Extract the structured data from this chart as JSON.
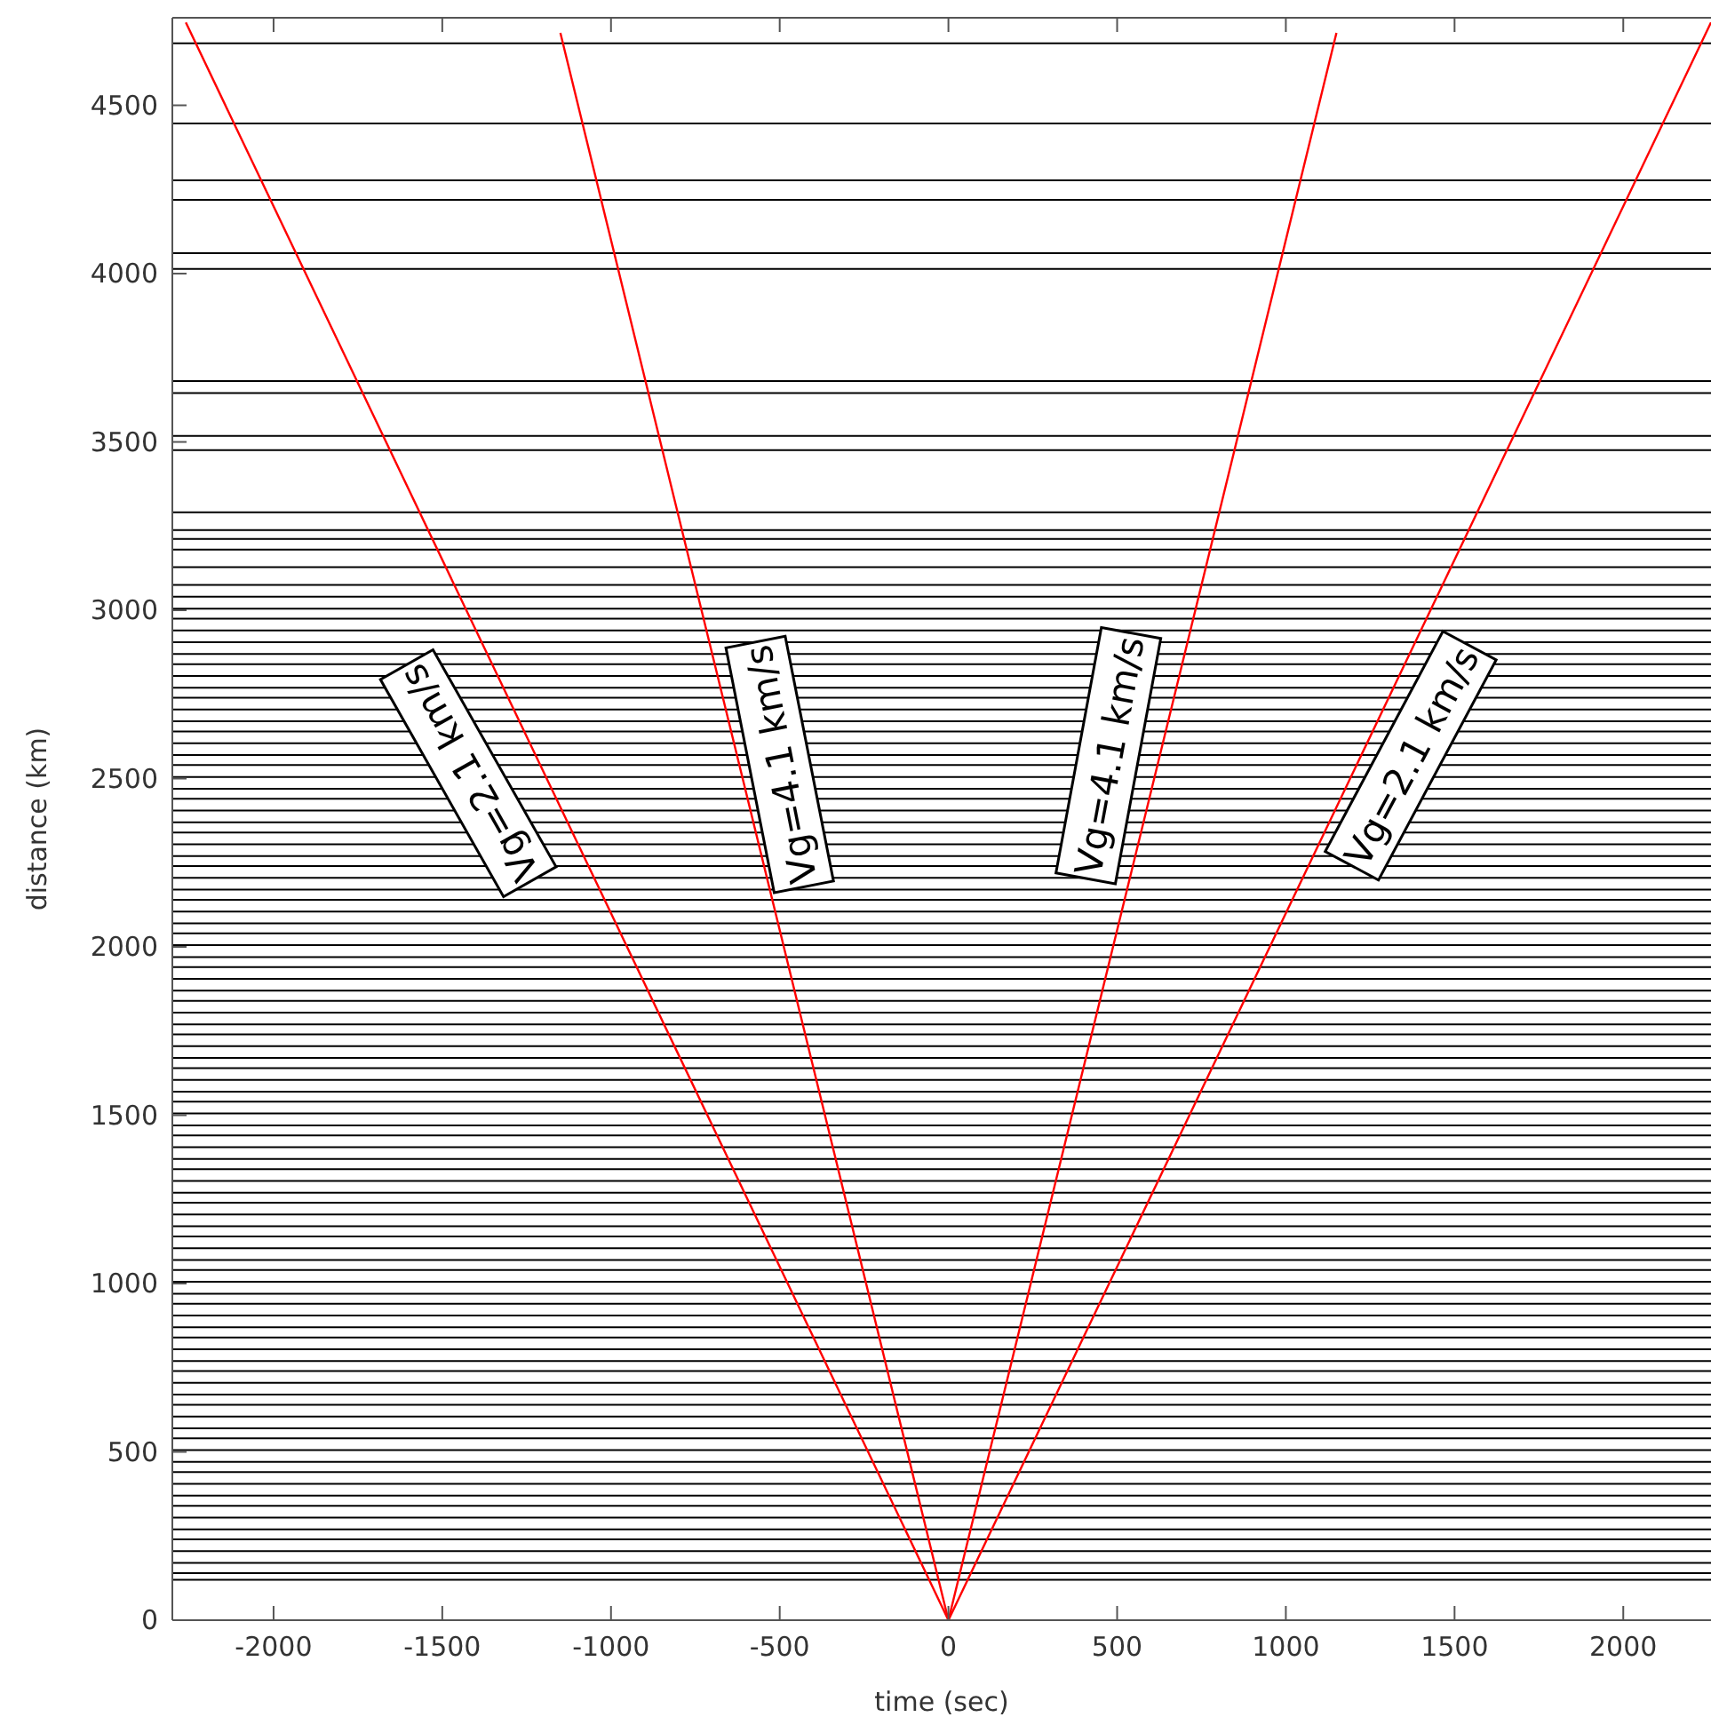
{
  "chart_data": {
    "type": "line",
    "xlabel": "time (sec)",
    "ylabel": "distance (km)",
    "xlim": [
      -2300,
      2260
    ],
    "ylim": [
      0,
      4760
    ],
    "xticks": [
      -2000,
      -1500,
      -1000,
      -500,
      0,
      500,
      1000,
      1500,
      2000
    ],
    "yticks": [
      0,
      500,
      1000,
      1500,
      2000,
      2500,
      3000,
      3500,
      4000,
      4500
    ],
    "grid": false,
    "marker": "none",
    "line_style": "solid",
    "series": [
      {
        "type": "line",
        "color": "#ff0000",
        "x": [
          -2260,
          0,
          2260
        ],
        "values": [
          4746,
          0,
          4746
        ]
      },
      {
        "type": "line",
        "color": "#ff0000",
        "x": [
          -1150,
          0,
          1150
        ],
        "values": [
          4715,
          0,
          4715
        ]
      }
    ],
    "annotations": [
      {
        "text": "Vg=2.1 km/s",
        "x": -1423,
        "y": 2516
      },
      {
        "text": "Vg=4.1 km/s",
        "x": -500,
        "y": 2542
      },
      {
        "text": "Vg=4.1 km/s",
        "x": 474,
        "y": 2568
      },
      {
        "text": "Vg=2.1 km/s",
        "x": 1370,
        "y": 2568
      }
    ],
    "ref_lines": [
      {
        "axis": "y",
        "value": 4684
      },
      {
        "axis": "y",
        "value": 4446
      },
      {
        "axis": "y",
        "value": 4277
      },
      {
        "axis": "y",
        "value": 4219
      },
      {
        "axis": "y",
        "value": 4061
      },
      {
        "axis": "y",
        "value": 4014
      },
      {
        "axis": "y",
        "value": 3681
      },
      {
        "axis": "y",
        "value": 3645
      },
      {
        "axis": "y",
        "value": 3518
      },
      {
        "axis": "y",
        "value": 3476
      },
      {
        "axis": "y",
        "value": 3291
      },
      {
        "axis": "y",
        "value": 3238
      },
      {
        "axis": "y",
        "value": 3212
      },
      {
        "axis": "y",
        "value": 3180
      },
      {
        "axis": "y",
        "value": 3128
      },
      {
        "axis": "y",
        "value": 3075
      },
      {
        "axis": "y",
        "value": 3040
      },
      {
        "axis": "y",
        "value": 3005
      },
      {
        "axis": "y",
        "value": 2975
      },
      {
        "axis": "y",
        "value": 2940
      },
      {
        "axis": "y",
        "value": 2905
      },
      {
        "axis": "y",
        "value": 2870
      },
      {
        "axis": "y",
        "value": 2840
      },
      {
        "axis": "y",
        "value": 2805
      },
      {
        "axis": "y",
        "value": 2770
      },
      {
        "axis": "y",
        "value": 2740
      },
      {
        "axis": "y",
        "value": 2705
      },
      {
        "axis": "y",
        "value": 2670
      },
      {
        "axis": "y",
        "value": 2640
      },
      {
        "axis": "y",
        "value": 2605
      },
      {
        "axis": "y",
        "value": 2570
      },
      {
        "axis": "y",
        "value": 2540
      },
      {
        "axis": "y",
        "value": 2505
      },
      {
        "axis": "y",
        "value": 2470
      },
      {
        "axis": "y",
        "value": 2440
      },
      {
        "axis": "y",
        "value": 2405
      },
      {
        "axis": "y",
        "value": 2370
      },
      {
        "axis": "y",
        "value": 2340
      },
      {
        "axis": "y",
        "value": 2305
      },
      {
        "axis": "y",
        "value": 2270
      },
      {
        "axis": "y",
        "value": 2240
      },
      {
        "axis": "y",
        "value": 2205
      },
      {
        "axis": "y",
        "value": 2170
      },
      {
        "axis": "y",
        "value": 2140
      },
      {
        "axis": "y",
        "value": 2105
      },
      {
        "axis": "y",
        "value": 2070
      },
      {
        "axis": "y",
        "value": 2040
      },
      {
        "axis": "y",
        "value": 2005
      },
      {
        "axis": "y",
        "value": 1970
      },
      {
        "axis": "y",
        "value": 1940
      },
      {
        "axis": "y",
        "value": 1905
      },
      {
        "axis": "y",
        "value": 1870
      },
      {
        "axis": "y",
        "value": 1840
      },
      {
        "axis": "y",
        "value": 1805
      },
      {
        "axis": "y",
        "value": 1770
      },
      {
        "axis": "y",
        "value": 1740
      },
      {
        "axis": "y",
        "value": 1705
      },
      {
        "axis": "y",
        "value": 1670
      },
      {
        "axis": "y",
        "value": 1640
      },
      {
        "axis": "y",
        "value": 1605
      },
      {
        "axis": "y",
        "value": 1570
      },
      {
        "axis": "y",
        "value": 1540
      },
      {
        "axis": "y",
        "value": 1505
      },
      {
        "axis": "y",
        "value": 1470
      },
      {
        "axis": "y",
        "value": 1440
      },
      {
        "axis": "y",
        "value": 1405
      },
      {
        "axis": "y",
        "value": 1370
      },
      {
        "axis": "y",
        "value": 1340
      },
      {
        "axis": "y",
        "value": 1305
      },
      {
        "axis": "y",
        "value": 1270
      },
      {
        "axis": "y",
        "value": 1240
      },
      {
        "axis": "y",
        "value": 1205
      },
      {
        "axis": "y",
        "value": 1170
      },
      {
        "axis": "y",
        "value": 1140
      },
      {
        "axis": "y",
        "value": 1105
      },
      {
        "axis": "y",
        "value": 1070
      },
      {
        "axis": "y",
        "value": 1040
      },
      {
        "axis": "y",
        "value": 1005
      },
      {
        "axis": "y",
        "value": 970
      },
      {
        "axis": "y",
        "value": 940
      },
      {
        "axis": "y",
        "value": 905
      },
      {
        "axis": "y",
        "value": 870
      },
      {
        "axis": "y",
        "value": 840
      },
      {
        "axis": "y",
        "value": 805
      },
      {
        "axis": "y",
        "value": 770
      },
      {
        "axis": "y",
        "value": 740
      },
      {
        "axis": "y",
        "value": 705
      },
      {
        "axis": "y",
        "value": 670
      },
      {
        "axis": "y",
        "value": 640
      },
      {
        "axis": "y",
        "value": 605
      },
      {
        "axis": "y",
        "value": 570
      },
      {
        "axis": "y",
        "value": 540
      },
      {
        "axis": "y",
        "value": 505
      },
      {
        "axis": "y",
        "value": 470
      },
      {
        "axis": "y",
        "value": 440
      },
      {
        "axis": "y",
        "value": 405
      },
      {
        "axis": "y",
        "value": 370
      },
      {
        "axis": "y",
        "value": 340
      },
      {
        "axis": "y",
        "value": 305
      },
      {
        "axis": "y",
        "value": 270
      },
      {
        "axis": "y",
        "value": 240
      },
      {
        "axis": "y",
        "value": 205
      },
      {
        "axis": "y",
        "value": 170
      },
      {
        "axis": "y",
        "value": 140
      },
      {
        "axis": "y",
        "value": 120
      }
    ]
  }
}
